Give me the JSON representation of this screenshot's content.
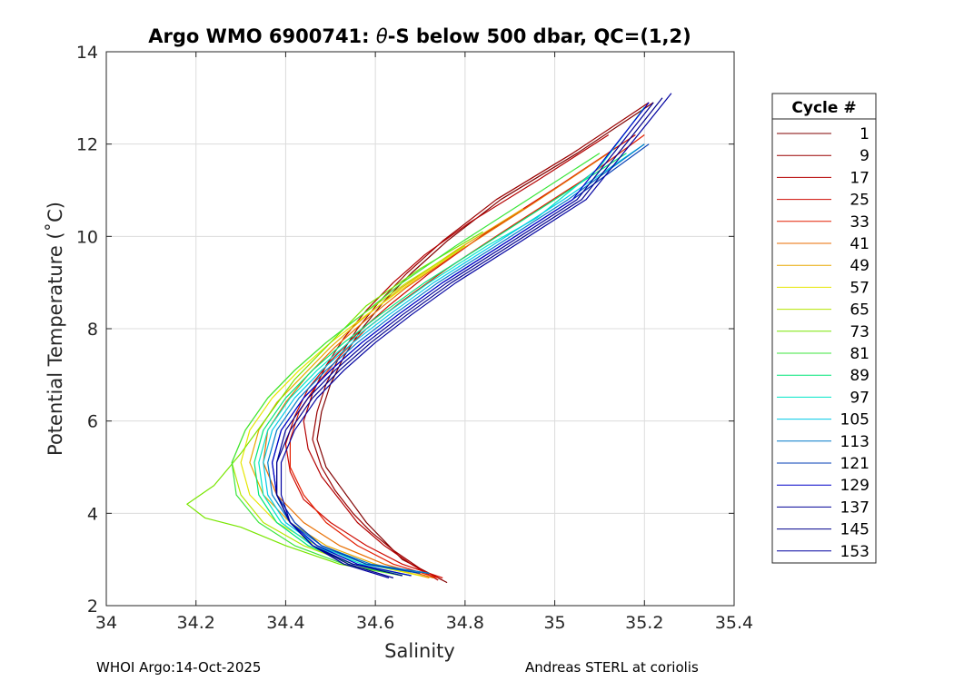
{
  "chart_data": {
    "type": "line",
    "title": "Argo WMO 6900741: θ-S below 500 dbar,  QC=(1,2)",
    "title_prefix": "Argo WMO 6900741: ",
    "title_symbol": "θ",
    "title_suffix": "-S below 500 dbar,  QC=(1,2)",
    "xlabel": "Salinity",
    "ylabel": "Potential Temperature (˚C)",
    "xlim": [
      34,
      35.4
    ],
    "ylim": [
      2,
      14
    ],
    "xticks": [
      "34",
      "34.2",
      "34.4",
      "34.6",
      "34.8",
      "35",
      "35.2",
      "35.4"
    ],
    "yticks": [
      "2",
      "4",
      "6",
      "8",
      "10",
      "12",
      "14"
    ],
    "grid": true,
    "legend_position": "outside-right",
    "legend_title": "Cycle #",
    "colormap": "jet",
    "series": [
      {
        "name": "1",
        "color": "#800000",
        "x": [
          34.76,
          34.72,
          34.66,
          34.62,
          34.58,
          34.55,
          34.52,
          34.49,
          34.47,
          34.48,
          34.5,
          34.53,
          34.57,
          34.62,
          34.68,
          34.76,
          34.88,
          35.05,
          35.22
        ],
        "y": [
          2.5,
          2.7,
          3.0,
          3.4,
          3.8,
          4.2,
          4.6,
          5.0,
          5.6,
          6.2,
          6.8,
          7.4,
          8.0,
          8.6,
          9.2,
          9.9,
          10.8,
          11.8,
          12.9
        ]
      },
      {
        "name": "9",
        "color": "#9a0000",
        "x": [
          34.75,
          34.7,
          34.64,
          34.59,
          34.55,
          34.51,
          34.48,
          34.46,
          34.47,
          34.49,
          34.52,
          34.56,
          34.61,
          34.67,
          34.75,
          34.87,
          35.04,
          35.21
        ],
        "y": [
          2.55,
          2.8,
          3.2,
          3.6,
          4.0,
          4.5,
          5.0,
          5.6,
          6.2,
          6.8,
          7.4,
          8.0,
          8.6,
          9.2,
          9.9,
          10.8,
          11.8,
          12.9
        ]
      },
      {
        "name": "17",
        "color": "#b40000",
        "x": [
          34.74,
          34.68,
          34.62,
          34.56,
          34.52,
          34.48,
          34.45,
          34.44,
          34.46,
          34.49,
          34.53,
          34.58,
          34.64,
          34.71,
          34.81,
          34.96,
          35.12
        ],
        "y": [
          2.55,
          2.9,
          3.3,
          3.8,
          4.3,
          4.8,
          5.4,
          6.0,
          6.6,
          7.2,
          7.8,
          8.4,
          9.0,
          9.6,
          10.3,
          11.2,
          12.2
        ]
      },
      {
        "name": "25",
        "color": "#ce0a00",
        "x": [
          34.75,
          34.66,
          34.58,
          34.5,
          34.44,
          34.41,
          34.4,
          34.42,
          34.45,
          34.5,
          34.56,
          34.63,
          34.72,
          34.85,
          35.01,
          35.18
        ],
        "y": [
          2.6,
          2.9,
          3.3,
          3.8,
          4.3,
          4.9,
          5.5,
          6.1,
          6.7,
          7.3,
          7.9,
          8.5,
          9.2,
          10.1,
          11.1,
          12.2
        ]
      },
      {
        "name": "33",
        "color": "#e31e00",
        "x": [
          34.74,
          34.64,
          34.56,
          34.49,
          34.44,
          34.41,
          34.41,
          34.43,
          34.47,
          34.52,
          34.58,
          34.66,
          34.76,
          34.9,
          35.06,
          35.2
        ],
        "y": [
          2.6,
          2.9,
          3.3,
          3.8,
          4.4,
          5.0,
          5.6,
          6.2,
          6.8,
          7.4,
          8.0,
          8.6,
          9.3,
          10.2,
          11.2,
          12.2
        ]
      },
      {
        "name": "41",
        "color": "#e86e00",
        "x": [
          34.73,
          34.62,
          34.52,
          34.44,
          34.38,
          34.35,
          34.36,
          34.4,
          34.45,
          34.51,
          34.58,
          34.67,
          34.79,
          34.95,
          35.12
        ],
        "y": [
          2.6,
          2.9,
          3.3,
          3.8,
          4.4,
          5.1,
          5.8,
          6.4,
          7.0,
          7.6,
          8.2,
          8.9,
          9.7,
          10.7,
          11.8
        ]
      },
      {
        "name": "49",
        "color": "#e8a800",
        "x": [
          34.72,
          34.6,
          34.49,
          34.41,
          34.35,
          34.32,
          34.34,
          34.38,
          34.44,
          34.5,
          34.57,
          34.66,
          34.78,
          34.93
        ],
        "y": [
          2.6,
          2.9,
          3.3,
          3.8,
          4.4,
          5.1,
          5.8,
          6.4,
          7.0,
          7.6,
          8.2,
          8.9,
          9.7,
          10.6
        ]
      },
      {
        "name": "57",
        "color": "#e6e600",
        "x": [
          34.7,
          34.58,
          34.47,
          34.38,
          34.32,
          34.3,
          34.32,
          34.37,
          34.43,
          34.5,
          34.58,
          34.68,
          34.8
        ],
        "y": [
          2.65,
          2.9,
          3.3,
          3.8,
          4.4,
          5.1,
          5.8,
          6.5,
          7.1,
          7.7,
          8.3,
          9.0,
          9.8
        ]
      },
      {
        "name": "65",
        "color": "#b4e600",
        "x": [
          34.68,
          34.55,
          34.44,
          34.35,
          34.3,
          34.28,
          34.31,
          34.36,
          34.42,
          34.49,
          34.57,
          34.67,
          34.8
        ],
        "y": [
          2.65,
          2.9,
          3.3,
          3.8,
          4.4,
          5.1,
          5.8,
          6.5,
          7.1,
          7.7,
          8.3,
          9.0,
          9.8
        ]
      },
      {
        "name": "73",
        "color": "#78e600",
        "x": [
          34.66,
          34.52,
          34.4,
          34.3,
          34.22,
          34.18,
          34.24,
          34.3,
          34.36,
          34.42,
          34.5,
          34.58,
          34.7,
          34.84
        ],
        "y": [
          2.65,
          2.9,
          3.3,
          3.7,
          3.9,
          4.2,
          4.6,
          5.3,
          6.1,
          6.9,
          7.7,
          8.5,
          9.3,
          10.1
        ]
      },
      {
        "name": "81",
        "color": "#3ce63c",
        "x": [
          34.66,
          34.53,
          34.42,
          34.34,
          34.29,
          34.28,
          34.31,
          34.36,
          34.42,
          34.49,
          34.57,
          34.66,
          34.78,
          34.94,
          35.1
        ],
        "y": [
          2.65,
          2.9,
          3.3,
          3.8,
          4.4,
          5.1,
          5.8,
          6.5,
          7.1,
          7.7,
          8.3,
          9.0,
          9.8,
          10.8,
          11.8
        ]
      },
      {
        "name": "89",
        "color": "#00e678",
        "x": [
          34.68,
          34.55,
          34.45,
          34.38,
          34.34,
          34.33,
          34.35,
          34.4,
          34.46,
          34.53,
          34.61,
          34.71,
          34.84,
          35.0,
          35.16
        ],
        "y": [
          2.65,
          2.9,
          3.3,
          3.8,
          4.4,
          5.1,
          5.8,
          6.5,
          7.1,
          7.7,
          8.3,
          9.0,
          9.8,
          10.8,
          11.8
        ]
      },
      {
        "name": "97",
        "color": "#00e6c8",
        "x": [
          34.7,
          34.57,
          34.46,
          34.39,
          34.35,
          34.34,
          34.36,
          34.41,
          34.47,
          34.54,
          34.62,
          34.72,
          34.85,
          34.96,
          35.1,
          35.2
        ],
        "y": [
          2.7,
          2.9,
          3.3,
          3.8,
          4.4,
          5.1,
          5.8,
          6.5,
          7.1,
          7.7,
          8.3,
          9.0,
          9.8,
          10.4,
          11.5,
          12.8
        ]
      },
      {
        "name": "105",
        "color": "#00c8e6",
        "x": [
          34.72,
          34.58,
          34.47,
          34.4,
          34.36,
          34.35,
          34.37,
          34.42,
          34.48,
          34.55,
          34.63,
          34.73,
          34.86,
          35.02,
          35.2
        ],
        "y": [
          2.7,
          2.9,
          3.3,
          3.8,
          4.4,
          5.1,
          5.8,
          6.5,
          7.1,
          7.7,
          8.3,
          9.0,
          9.8,
          10.8,
          12.0
        ]
      },
      {
        "name": "113",
        "color": "#0078c8",
        "x": [
          34.72,
          34.59,
          34.48,
          34.41,
          34.37,
          34.36,
          34.38,
          34.43,
          34.49,
          34.56,
          34.64,
          34.74,
          34.87,
          35.03,
          35.2
        ],
        "y": [
          2.7,
          2.9,
          3.3,
          3.8,
          4.4,
          5.1,
          5.8,
          6.5,
          7.1,
          7.7,
          8.3,
          9.0,
          9.8,
          10.8,
          12.0
        ]
      },
      {
        "name": "121",
        "color": "#003cb4",
        "x": [
          34.7,
          34.58,
          34.48,
          34.42,
          34.38,
          34.37,
          34.39,
          34.44,
          34.5,
          34.57,
          34.65,
          34.75,
          34.88,
          35.04,
          35.21
        ],
        "y": [
          2.7,
          2.9,
          3.3,
          3.8,
          4.4,
          5.1,
          5.8,
          6.5,
          7.1,
          7.7,
          8.3,
          9.0,
          9.8,
          10.8,
          12.0
        ]
      },
      {
        "name": "129",
        "color": "#0000c8",
        "x": [
          34.68,
          34.56,
          34.47,
          34.41,
          34.38,
          34.37,
          34.39,
          34.44,
          34.5,
          34.57,
          34.65,
          34.75,
          34.88,
          35.04,
          35.21
        ],
        "y": [
          2.65,
          2.9,
          3.3,
          3.8,
          4.4,
          5.1,
          5.8,
          6.5,
          7.1,
          7.7,
          8.3,
          9.0,
          9.8,
          10.8,
          12.9
        ]
      },
      {
        "name": "137",
        "color": "#000096",
        "x": [
          34.66,
          34.55,
          34.46,
          34.41,
          34.38,
          34.38,
          34.4,
          34.45,
          34.51,
          34.58,
          34.66,
          34.76,
          34.89,
          35.05,
          35.22
        ],
        "y": [
          2.65,
          2.9,
          3.3,
          3.8,
          4.4,
          5.1,
          5.8,
          6.5,
          7.1,
          7.7,
          8.3,
          9.0,
          9.8,
          10.8,
          12.9
        ]
      },
      {
        "name": "145",
        "color": "#00008c",
        "x": [
          34.64,
          34.54,
          34.46,
          34.41,
          34.38,
          34.38,
          34.41,
          34.46,
          34.52,
          34.59,
          34.67,
          34.77,
          34.9,
          35.06,
          35.24
        ],
        "y": [
          2.6,
          2.9,
          3.3,
          3.8,
          4.4,
          5.1,
          5.8,
          6.5,
          7.1,
          7.7,
          8.3,
          9.0,
          9.8,
          10.8,
          13.0
        ]
      },
      {
        "name": "153",
        "color": "#0000a0",
        "x": [
          34.63,
          34.53,
          34.46,
          34.41,
          34.39,
          34.39,
          34.42,
          34.47,
          34.53,
          34.6,
          34.68,
          34.78,
          34.91,
          35.07,
          35.26
        ],
        "y": [
          2.6,
          2.9,
          3.3,
          3.8,
          4.4,
          5.1,
          5.8,
          6.5,
          7.1,
          7.7,
          8.3,
          9.0,
          9.8,
          10.8,
          13.1
        ]
      }
    ]
  },
  "footer": {
    "left": "WHOI Argo:14-Oct-2025",
    "right": "Andreas STERL at coriolis"
  }
}
